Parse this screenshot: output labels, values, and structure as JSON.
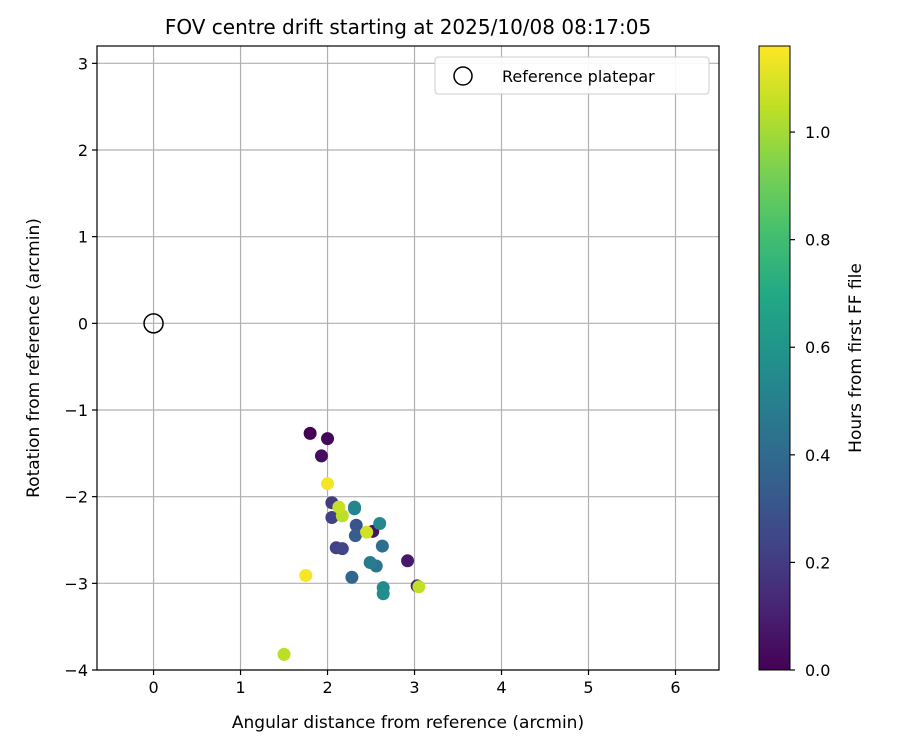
{
  "chart_data": {
    "type": "scatter",
    "title": "FOV centre drift starting at 2025/10/08 08:17:05",
    "xlabel": "Angular distance from reference (arcmin)",
    "ylabel": "Rotation from reference (arcmin)",
    "xlim": [
      -0.65,
      6.5
    ],
    "ylim": [
      -4.0,
      3.2
    ],
    "xticks": [
      0,
      1,
      2,
      3,
      4,
      5,
      6
    ],
    "yticks": [
      -4,
      -3,
      -2,
      -1,
      0,
      1,
      2,
      3
    ],
    "grid": true,
    "legend": {
      "placement": "top-right",
      "entries": [
        "Reference platepar"
      ]
    },
    "reference": {
      "x": 0.0,
      "y": 0.0,
      "label": "Reference platepar"
    },
    "colorbar": {
      "label": "Hours from first FF file",
      "colormap": "viridis",
      "range": [
        0.0,
        1.16
      ],
      "ticks": [
        0.0,
        0.2,
        0.4,
        0.6,
        0.8,
        1.0
      ],
      "tick_labels": [
        "0.0",
        "0.2",
        "0.4",
        "0.6",
        "0.8",
        "1.0"
      ]
    },
    "points": [
      {
        "x": 1.8,
        "y": -1.27,
        "h": 0.0
      },
      {
        "x": 2.0,
        "y": -1.33,
        "h": 0.02
      },
      {
        "x": 1.93,
        "y": -1.53,
        "h": 0.04
      },
      {
        "x": 2.52,
        "y": -2.4,
        "h": 0.06
      },
      {
        "x": 2.92,
        "y": -2.74,
        "h": 0.08
      },
      {
        "x": 3.03,
        "y": -3.03,
        "h": 0.1
      },
      {
        "x": 2.05,
        "y": -2.07,
        "h": 0.2
      },
      {
        "x": 2.05,
        "y": -2.24,
        "h": 0.22
      },
      {
        "x": 2.1,
        "y": -2.59,
        "h": 0.22
      },
      {
        "x": 2.17,
        "y": -2.6,
        "h": 0.24
      },
      {
        "x": 2.33,
        "y": -2.33,
        "h": 0.3
      },
      {
        "x": 2.32,
        "y": -2.45,
        "h": 0.34
      },
      {
        "x": 2.28,
        "y": -2.93,
        "h": 0.38
      },
      {
        "x": 2.63,
        "y": -2.57,
        "h": 0.42
      },
      {
        "x": 2.56,
        "y": -2.8,
        "h": 0.44
      },
      {
        "x": 2.49,
        "y": -2.76,
        "h": 0.48
      },
      {
        "x": 2.31,
        "y": -2.14,
        "h": 0.5
      },
      {
        "x": 2.31,
        "y": -2.12,
        "h": 0.52
      },
      {
        "x": 2.6,
        "y": -2.31,
        "h": 0.54
      },
      {
        "x": 2.64,
        "y": -3.05,
        "h": 0.54
      },
      {
        "x": 2.64,
        "y": -3.12,
        "h": 0.56
      },
      {
        "x": 2.17,
        "y": -2.22,
        "h": 1.04
      },
      {
        "x": 2.13,
        "y": -2.12,
        "h": 1.06
      },
      {
        "x": 3.05,
        "y": -3.04,
        "h": 1.05
      },
      {
        "x": 1.5,
        "y": -3.82,
        "h": 1.04
      },
      {
        "x": 2.45,
        "y": -2.41,
        "h": 1.08
      },
      {
        "x": 2.0,
        "y": -1.85,
        "h": 1.14
      },
      {
        "x": 1.75,
        "y": -2.91,
        "h": 1.15
      }
    ]
  }
}
